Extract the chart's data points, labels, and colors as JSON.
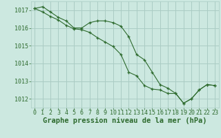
{
  "line1_x": [
    0,
    1,
    2,
    3,
    4,
    5,
    6,
    7,
    8,
    9,
    10,
    11,
    12,
    13,
    14,
    15,
    16,
    17,
    18,
    19,
    20,
    21,
    22,
    23
  ],
  "line1_y": [
    1017.1,
    1017.2,
    1016.9,
    1016.6,
    1016.4,
    1016.0,
    1016.0,
    1016.3,
    1016.4,
    1016.4,
    1016.3,
    1016.1,
    1015.5,
    1014.5,
    1014.2,
    1013.5,
    1012.8,
    1012.6,
    1012.3,
    1011.75,
    1012.0,
    1012.5,
    1012.8,
    1012.75
  ],
  "line2_x": [
    0,
    1,
    2,
    3,
    4,
    5,
    6,
    7,
    8,
    9,
    10,
    11,
    12,
    13,
    14,
    15,
    16,
    17,
    18,
    19,
    20,
    21,
    22,
    23
  ],
  "line2_y": [
    1017.1,
    1016.9,
    1016.65,
    1016.45,
    1016.15,
    1015.95,
    1015.9,
    1015.75,
    1015.45,
    1015.2,
    1014.95,
    1014.5,
    1013.5,
    1013.3,
    1012.75,
    1012.55,
    1012.5,
    1012.3,
    1012.3,
    1011.75,
    1012.0,
    1012.5,
    1012.8,
    1012.75
  ],
  "line_color": "#2d6a2d",
  "marker": "+",
  "background_color": "#cce8e0",
  "grid_color": "#aaccc4",
  "xlabel": "Graphe pression niveau de la mer (hPa)",
  "xlabel_fontsize": 7.5,
  "tick_fontsize": 6,
  "ylim": [
    1011.5,
    1017.5
  ],
  "xlim": [
    -0.5,
    23.5
  ],
  "yticks": [
    1012,
    1013,
    1014,
    1015,
    1016,
    1017
  ],
  "xticks": [
    0,
    1,
    2,
    3,
    4,
    5,
    6,
    7,
    8,
    9,
    10,
    11,
    12,
    13,
    14,
    15,
    16,
    17,
    18,
    19,
    20,
    21,
    22,
    23
  ]
}
